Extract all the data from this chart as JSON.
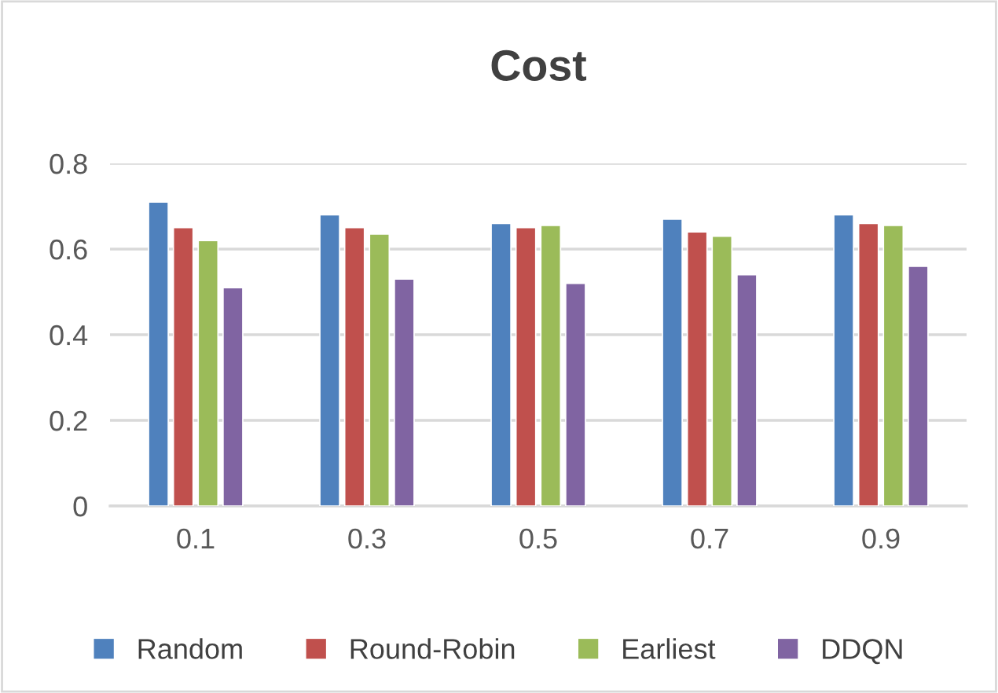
{
  "chart_data": {
    "type": "bar",
    "title": "Cost",
    "categories": [
      "0.1",
      "0.3",
      "0.5",
      "0.7",
      "0.9"
    ],
    "series": [
      {
        "name": "Random",
        "color": "#4f81bd",
        "values": [
          0.71,
          0.68,
          0.66,
          0.67,
          0.68
        ]
      },
      {
        "name": "Round-Robin",
        "color": "#c0504d",
        "values": [
          0.65,
          0.65,
          0.65,
          0.64,
          0.66
        ]
      },
      {
        "name": "Earliest",
        "color": "#9bbb59",
        "values": [
          0.62,
          0.635,
          0.655,
          0.63,
          0.655
        ]
      },
      {
        "name": "DDQN",
        "color": "#8064a2",
        "values": [
          0.51,
          0.53,
          0.52,
          0.54,
          0.56
        ]
      }
    ],
    "ylim": [
      0,
      0.8
    ],
    "yticks": [
      0,
      0.2,
      0.4,
      0.6,
      0.8
    ],
    "grid": "y",
    "legend": "bottom"
  }
}
